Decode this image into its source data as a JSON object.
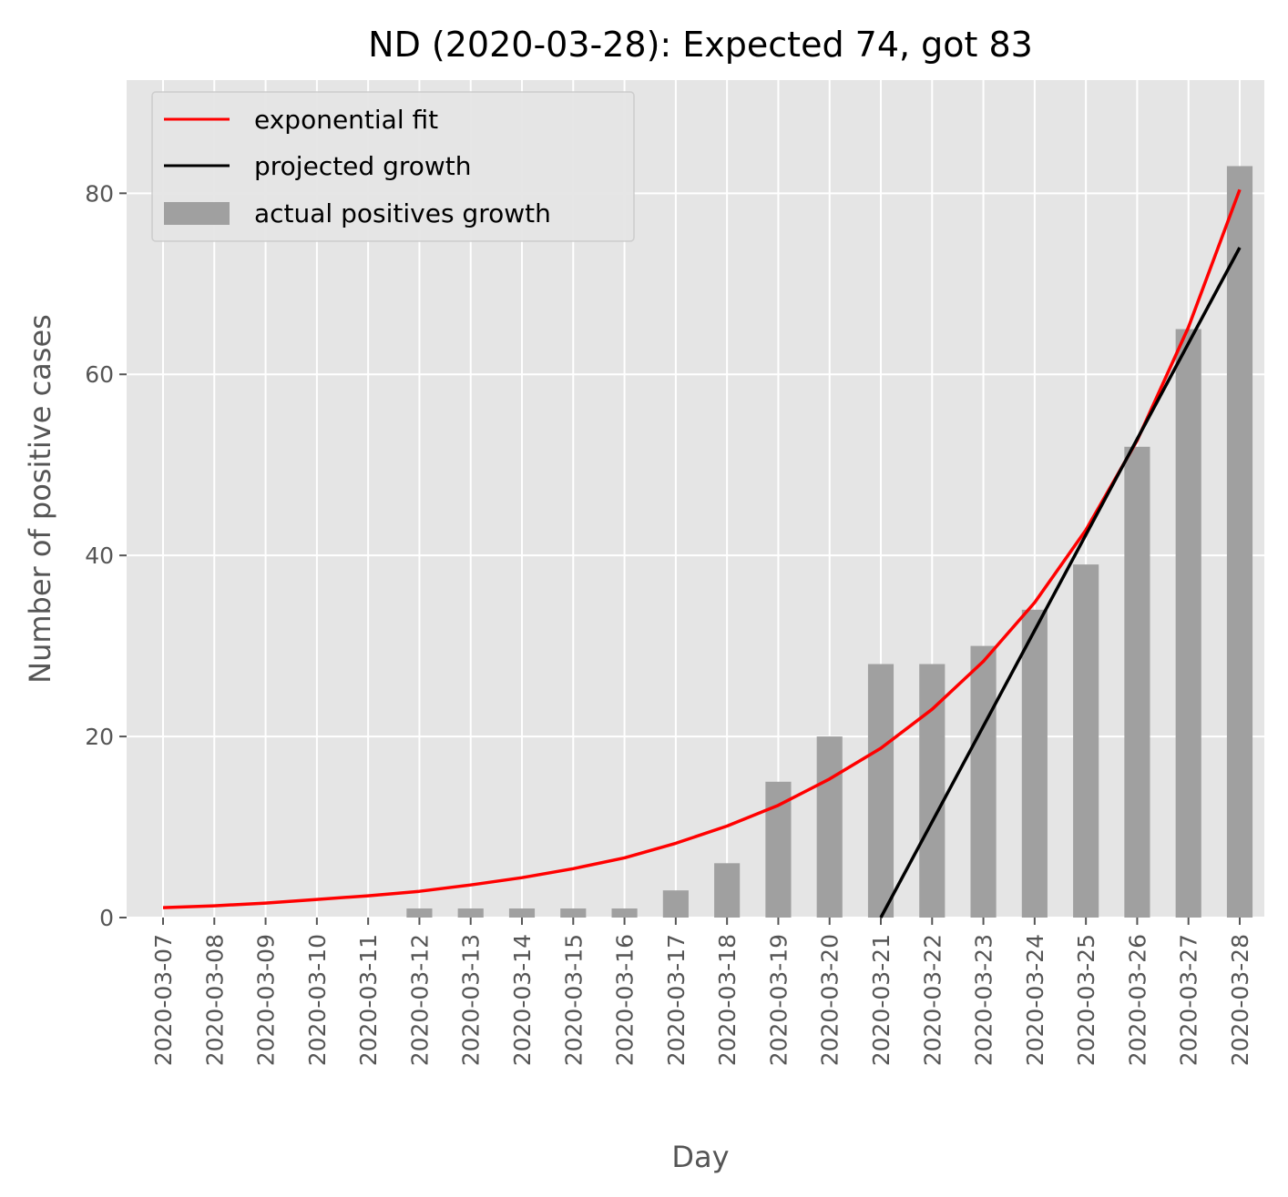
{
  "chart_data": {
    "type": "bar",
    "title": "ND (2020-03-28): Expected 74, got 83",
    "xlabel": "Day",
    "ylabel": "Number of positive cases",
    "ylim": [
      0,
      92.5
    ],
    "yticks": [
      0,
      20,
      40,
      60,
      80
    ],
    "grid": true,
    "legend_position": "top-left",
    "categories": [
      "2020-03-07",
      "2020-03-08",
      "2020-03-09",
      "2020-03-10",
      "2020-03-11",
      "2020-03-12",
      "2020-03-13",
      "2020-03-14",
      "2020-03-15",
      "2020-03-16",
      "2020-03-17",
      "2020-03-18",
      "2020-03-19",
      "2020-03-20",
      "2020-03-21",
      "2020-03-22",
      "2020-03-23",
      "2020-03-24",
      "2020-03-25",
      "2020-03-26",
      "2020-03-27",
      "2020-03-28"
    ],
    "series": [
      {
        "name": "exponential fit",
        "type": "line",
        "color": "#ff0000",
        "values": [
          1.1,
          1.3,
          1.6,
          2.0,
          2.4,
          2.9,
          3.6,
          4.4,
          5.4,
          6.6,
          8.2,
          10.1,
          12.4,
          15.3,
          18.7,
          23.0,
          28.3,
          34.8,
          42.8,
          52.7,
          65.2,
          80.4
        ]
      },
      {
        "name": "projected growth",
        "type": "line",
        "color": "#000000",
        "x": [
          "2020-03-21",
          "2020-03-28"
        ],
        "values": [
          0,
          74
        ]
      },
      {
        "name": "actual positives growth",
        "type": "bar",
        "color": "#a0a0a0",
        "values": [
          0,
          0,
          0,
          0,
          0,
          1,
          1,
          1,
          1,
          1,
          3,
          6,
          15,
          20,
          28,
          28,
          30,
          34,
          39,
          52,
          65,
          83
        ]
      }
    ]
  }
}
